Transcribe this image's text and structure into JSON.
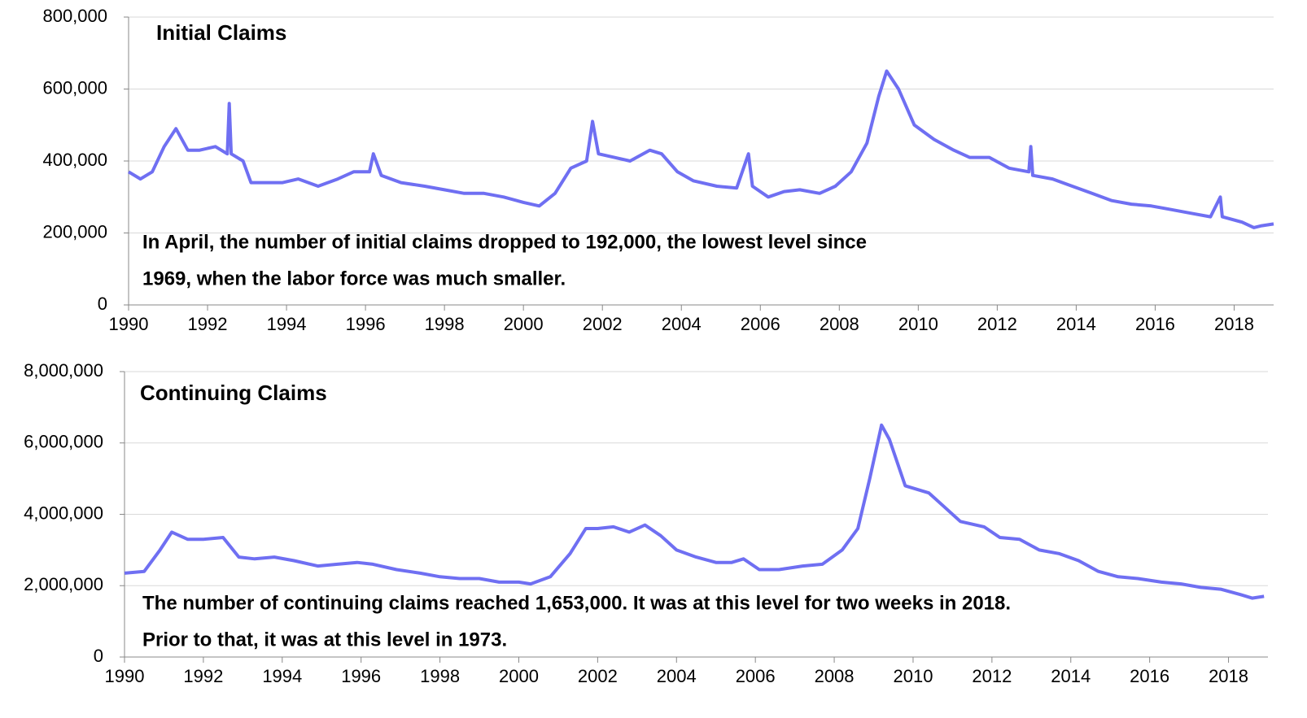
{
  "chart_data": [
    {
      "type": "line",
      "title": "Initial Claims",
      "annotation": [
        "In April, the number of initial claims dropped to 192,000, the lowest level since",
        "1969, when the labor force was much smaller."
      ],
      "color": "#6f6ff2",
      "grid": true,
      "xlim": [
        1990,
        2019
      ],
      "xticks": [
        1990,
        1992,
        1994,
        1996,
        1998,
        2000,
        2002,
        2004,
        2006,
        2008,
        2010,
        2012,
        2014,
        2016,
        2018
      ],
      "ylim": [
        0,
        800000
      ],
      "yticks": [
        0,
        {
          "value": 200000,
          "label": "200,000"
        },
        {
          "value": 400000,
          "label": "400,000"
        },
        {
          "value": 600000,
          "label": "600,000"
        },
        {
          "value": 800000,
          "label": "800,000"
        }
      ],
      "x": [
        1990.0,
        1990.3,
        1990.6,
        1990.9,
        1991.2,
        1991.5,
        1991.8,
        1992.2,
        1992.5,
        1992.55,
        1992.6,
        1992.9,
        1993.1,
        1993.5,
        1993.9,
        1994.3,
        1994.8,
        1995.3,
        1995.7,
        1996.1,
        1996.2,
        1996.4,
        1996.9,
        1997.5,
        1998.0,
        1998.5,
        1999.0,
        1999.5,
        2000.0,
        2000.4,
        2000.8,
        2001.2,
        2001.6,
        2001.75,
        2001.9,
        2002.3,
        2002.7,
        2003.2,
        2003.5,
        2003.9,
        2004.3,
        2004.9,
        2005.4,
        2005.7,
        2005.8,
        2006.2,
        2006.6,
        2007.0,
        2007.5,
        2007.9,
        2008.3,
        2008.7,
        2009.0,
        2009.2,
        2009.5,
        2009.9,
        2010.4,
        2010.9,
        2011.3,
        2011.8,
        2012.3,
        2012.8,
        2012.85,
        2012.9,
        2013.4,
        2013.9,
        2014.4,
        2014.9,
        2015.4,
        2015.9,
        2016.4,
        2016.9,
        2017.4,
        2017.65,
        2017.7,
        2018.2,
        2018.5,
        2018.7,
        2019.0
      ],
      "values": [
        370000,
        350000,
        370000,
        440000,
        490000,
        430000,
        430000,
        440000,
        420000,
        560000,
        420000,
        400000,
        340000,
        340000,
        340000,
        350000,
        330000,
        350000,
        370000,
        370000,
        420000,
        360000,
        340000,
        330000,
        320000,
        310000,
        310000,
        300000,
        285000,
        275000,
        310000,
        380000,
        400000,
        510000,
        420000,
        410000,
        400000,
        430000,
        420000,
        370000,
        345000,
        330000,
        325000,
        420000,
        330000,
        300000,
        315000,
        320000,
        310000,
        330000,
        370000,
        450000,
        580000,
        650000,
        600000,
        500000,
        460000,
        430000,
        410000,
        410000,
        380000,
        370000,
        440000,
        360000,
        350000,
        330000,
        310000,
        290000,
        280000,
        275000,
        265000,
        255000,
        245000,
        300000,
        245000,
        230000,
        215000,
        220000,
        225000
      ]
    },
    {
      "type": "line",
      "title": "Continuing Claims",
      "annotation": [
        "The number of continuing claims reached 1,653,000. It was at this level for two weeks in 2018.",
        "Prior to that, it was at this level in 1973."
      ],
      "color": "#6f6ff2",
      "grid": true,
      "xlim": [
        1990,
        2019
      ],
      "xticks": [
        1990,
        1992,
        1994,
        1996,
        1998,
        2000,
        2002,
        2004,
        2006,
        2008,
        2010,
        2012,
        2014,
        2016,
        2018
      ],
      "ylim": [
        0,
        8000000
      ],
      "yticks": [
        0,
        {
          "value": 2000000,
          "label": "2,000,000"
        },
        {
          "value": 4000000,
          "label": "4,000,000"
        },
        {
          "value": 6000000,
          "label": "6,000,000"
        },
        {
          "value": 8000000,
          "label": "8,000,000"
        }
      ],
      "x": [
        1990.0,
        1990.5,
        1990.9,
        1991.2,
        1991.6,
        1992.0,
        1992.5,
        1992.9,
        1993.3,
        1993.8,
        1994.3,
        1994.9,
        1995.4,
        1995.9,
        1996.3,
        1996.9,
        1997.5,
        1998.0,
        1998.5,
        1999.0,
        1999.5,
        2000.0,
        2000.3,
        2000.8,
        2001.3,
        2001.7,
        2002.0,
        2002.4,
        2002.8,
        2003.2,
        2003.6,
        2004.0,
        2004.5,
        2005.0,
        2005.4,
        2005.7,
        2006.1,
        2006.6,
        2007.2,
        2007.7,
        2008.2,
        2008.6,
        2008.9,
        2009.2,
        2009.4,
        2009.8,
        2010.4,
        2010.8,
        2011.2,
        2011.8,
        2012.2,
        2012.7,
        2013.2,
        2013.7,
        2014.2,
        2014.7,
        2015.2,
        2015.7,
        2016.3,
        2016.8,
        2017.3,
        2017.8,
        2018.3,
        2018.6,
        2018.9
      ],
      "values": [
        2350000,
        2400000,
        3000000,
        3500000,
        3300000,
        3300000,
        3350000,
        2800000,
        2750000,
        2800000,
        2700000,
        2550000,
        2600000,
        2650000,
        2600000,
        2450000,
        2350000,
        2250000,
        2200000,
        2200000,
        2100000,
        2100000,
        2050000,
        2250000,
        2900000,
        3600000,
        3600000,
        3650000,
        3500000,
        3700000,
        3400000,
        3000000,
        2800000,
        2650000,
        2650000,
        2750000,
        2450000,
        2450000,
        2550000,
        2600000,
        3000000,
        3600000,
        5000000,
        6500000,
        6100000,
        4800000,
        4600000,
        4200000,
        3800000,
        3650000,
        3350000,
        3300000,
        3000000,
        2900000,
        2700000,
        2400000,
        2250000,
        2200000,
        2100000,
        2050000,
        1950000,
        1900000,
        1750000,
        1650000,
        1700000
      ]
    }
  ]
}
